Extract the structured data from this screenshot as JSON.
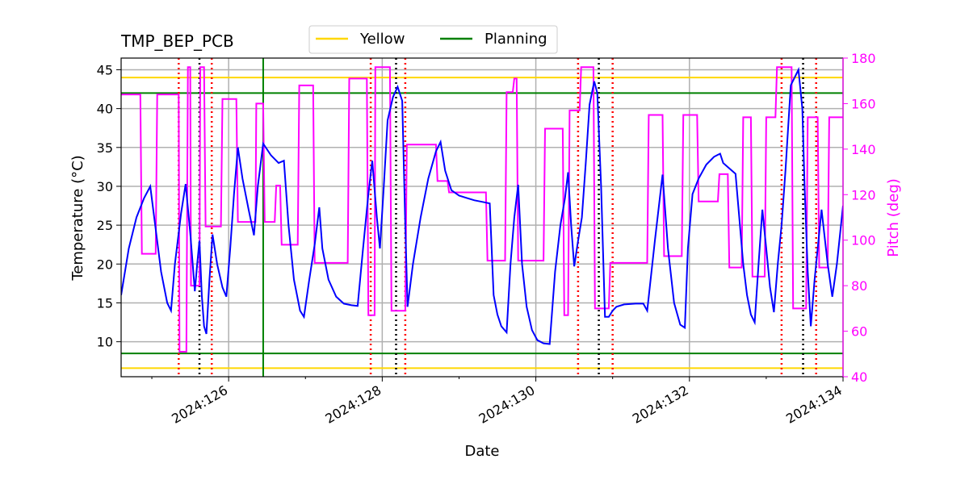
{
  "chart_data": {
    "type": "line",
    "title": "TMP_BEP_PCB",
    "xlabel": "Date",
    "ylabel": "Temperature ($^\\circ$C)",
    "ylabel_display": "Temperature (°C)",
    "y2label": "Pitch (deg)",
    "xlim": [
      124.6,
      134.0
    ],
    "ylim": [
      5.5,
      46.5
    ],
    "y2lim": [
      40,
      180
    ],
    "x_ticks": [
      {
        "value": 126,
        "label": "2024:126"
      },
      {
        "value": 128,
        "label": "2024:128"
      },
      {
        "value": 130,
        "label": "2024:130"
      },
      {
        "value": 132,
        "label": "2024:132"
      },
      {
        "value": 134,
        "label": "2024:134"
      }
    ],
    "x_minor_ticks": [
      125,
      127,
      129,
      131,
      133
    ],
    "y_ticks": [
      10,
      15,
      20,
      25,
      30,
      35,
      40,
      45
    ],
    "y2_ticks": [
      40,
      60,
      80,
      100,
      120,
      140,
      160,
      180
    ],
    "grid": true,
    "colors": {
      "temperature": "#0000ff",
      "pitch": "#ff00ff",
      "yellow": "#ffd700",
      "planning": "#008000",
      "red_marker": "#ff0000",
      "black_marker": "#000000"
    },
    "legend": {
      "placement": "top-center",
      "entries": [
        {
          "label": "Yellow",
          "color": "#ffd700"
        },
        {
          "label": "Planning",
          "color": "#008000"
        }
      ]
    },
    "limits": {
      "yellow": [
        6.6,
        44.0
      ],
      "planning": [
        8.5,
        42.0
      ],
      "planning_vertical_x": 126.45
    },
    "red_markers_x": [
      125.35,
      125.78,
      127.85,
      128.3,
      130.55,
      131.0,
      133.2,
      133.65
    ],
    "black_markers_x": [
      125.62,
      128.18,
      130.82,
      133.48
    ],
    "series": [
      {
        "name": "Temperature",
        "axis": "left",
        "points": [
          [
            124.6,
            16.0
          ],
          [
            124.7,
            22.0
          ],
          [
            124.8,
            26.0
          ],
          [
            124.9,
            28.5
          ],
          [
            124.98,
            30.0
          ],
          [
            125.05,
            24.5
          ],
          [
            125.12,
            19.0
          ],
          [
            125.2,
            15.0
          ],
          [
            125.25,
            14.0
          ],
          [
            125.3,
            20.0
          ],
          [
            125.38,
            26.5
          ],
          [
            125.44,
            30.3
          ],
          [
            125.5,
            24.0
          ],
          [
            125.56,
            16.5
          ],
          [
            125.59,
            20.0
          ],
          [
            125.62,
            23.0
          ],
          [
            125.65,
            16.0
          ],
          [
            125.68,
            12.0
          ],
          [
            125.71,
            11.0
          ],
          [
            125.75,
            18.0
          ],
          [
            125.79,
            23.8
          ],
          [
            125.85,
            20.0
          ],
          [
            125.92,
            17.0
          ],
          [
            125.97,
            15.8
          ],
          [
            126.02,
            22.0
          ],
          [
            126.07,
            29.0
          ],
          [
            126.12,
            35.0
          ],
          [
            126.18,
            31.0
          ],
          [
            126.26,
            27.0
          ],
          [
            126.33,
            23.7
          ],
          [
            126.38,
            30.0
          ],
          [
            126.45,
            35.5
          ],
          [
            126.55,
            34.0
          ],
          [
            126.65,
            33.0
          ],
          [
            126.72,
            33.3
          ],
          [
            126.78,
            25.0
          ],
          [
            126.85,
            18.0
          ],
          [
            126.93,
            14.0
          ],
          [
            126.98,
            13.2
          ],
          [
            127.05,
            18.0
          ],
          [
            127.12,
            22.5
          ],
          [
            127.18,
            27.3
          ],
          [
            127.22,
            22.0
          ],
          [
            127.3,
            18.0
          ],
          [
            127.4,
            15.8
          ],
          [
            127.5,
            14.9
          ],
          [
            127.6,
            14.7
          ],
          [
            127.68,
            14.6
          ],
          [
            127.75,
            22.0
          ],
          [
            127.82,
            29.0
          ],
          [
            127.87,
            33.3
          ],
          [
            127.93,
            26.0
          ],
          [
            127.97,
            22.0
          ],
          [
            128.02,
            30.0
          ],
          [
            128.07,
            38.5
          ],
          [
            128.14,
            41.5
          ],
          [
            128.2,
            42.8
          ],
          [
            128.26,
            41.0
          ],
          [
            128.3,
            25.0
          ],
          [
            128.33,
            14.5
          ],
          [
            128.4,
            20.0
          ],
          [
            128.5,
            26.0
          ],
          [
            128.6,
            31.0
          ],
          [
            128.7,
            34.5
          ],
          [
            128.76,
            35.7
          ],
          [
            128.82,
            32.0
          ],
          [
            128.9,
            29.5
          ],
          [
            129.0,
            28.8
          ],
          [
            129.1,
            28.5
          ],
          [
            129.2,
            28.2
          ],
          [
            129.3,
            28.0
          ],
          [
            129.4,
            27.8
          ],
          [
            129.45,
            16.0
          ],
          [
            129.5,
            13.5
          ],
          [
            129.55,
            12.0
          ],
          [
            129.62,
            11.2
          ],
          [
            129.67,
            20.0
          ],
          [
            129.72,
            26.0
          ],
          [
            129.77,
            30.2
          ],
          [
            129.82,
            20.0
          ],
          [
            129.88,
            14.5
          ],
          [
            129.95,
            11.5
          ],
          [
            130.02,
            10.2
          ],
          [
            130.1,
            9.8
          ],
          [
            130.18,
            9.7
          ],
          [
            130.25,
            19.0
          ],
          [
            130.32,
            25.0
          ],
          [
            130.38,
            28.5
          ],
          [
            130.42,
            31.8
          ],
          [
            130.46,
            25.0
          ],
          [
            130.5,
            19.7
          ],
          [
            130.55,
            23.0
          ],
          [
            130.6,
            26.0
          ],
          [
            130.65,
            33.0
          ],
          [
            130.7,
            40.5
          ],
          [
            130.76,
            43.5
          ],
          [
            130.8,
            42.0
          ],
          [
            130.85,
            30.0
          ],
          [
            130.9,
            13.2
          ],
          [
            130.95,
            13.2
          ],
          [
            131.0,
            14.0
          ],
          [
            131.05,
            14.5
          ],
          [
            131.15,
            14.8
          ],
          [
            131.3,
            14.9
          ],
          [
            131.4,
            14.9
          ],
          [
            131.45,
            14.0
          ],
          [
            131.55,
            23.0
          ],
          [
            131.65,
            31.5
          ],
          [
            131.72,
            22.0
          ],
          [
            131.8,
            15.0
          ],
          [
            131.88,
            12.2
          ],
          [
            131.94,
            11.8
          ],
          [
            131.98,
            22.0
          ],
          [
            132.04,
            29.0
          ],
          [
            132.12,
            31.0
          ],
          [
            132.22,
            32.8
          ],
          [
            132.32,
            33.8
          ],
          [
            132.4,
            34.2
          ],
          [
            132.44,
            33.0
          ],
          [
            132.52,
            32.3
          ],
          [
            132.6,
            31.6
          ],
          [
            132.7,
            20.0
          ],
          [
            132.75,
            16.0
          ],
          [
            132.8,
            13.5
          ],
          [
            132.85,
            12.5
          ],
          [
            132.9,
            20.0
          ],
          [
            132.95,
            27.0
          ],
          [
            133.0,
            22.0
          ],
          [
            133.05,
            17.0
          ],
          [
            133.1,
            13.8
          ],
          [
            133.15,
            20.0
          ],
          [
            133.2,
            25.0
          ],
          [
            133.25,
            32.0
          ],
          [
            133.32,
            43.0
          ],
          [
            133.42,
            45.0
          ],
          [
            133.47,
            40.0
          ],
          [
            133.5,
            30.0
          ],
          [
            133.54,
            19.0
          ],
          [
            133.58,
            12.0
          ],
          [
            133.63,
            18.0
          ],
          [
            133.72,
            27.0
          ],
          [
            133.8,
            20.0
          ],
          [
            133.86,
            15.8
          ],
          [
            133.92,
            20.0
          ],
          [
            134.0,
            27.5
          ]
        ]
      },
      {
        "name": "Pitch",
        "axis": "right",
        "points": [
          [
            124.6,
            164
          ],
          [
            124.85,
            164
          ],
          [
            124.87,
            94
          ],
          [
            125.05,
            94
          ],
          [
            125.07,
            164
          ],
          [
            125.35,
            164
          ],
          [
            125.36,
            51
          ],
          [
            125.45,
            51
          ],
          [
            125.47,
            176
          ],
          [
            125.5,
            176
          ],
          [
            125.51,
            80
          ],
          [
            125.62,
            80
          ],
          [
            125.63,
            176
          ],
          [
            125.68,
            176
          ],
          [
            125.7,
            106
          ],
          [
            125.9,
            106
          ],
          [
            125.92,
            162
          ],
          [
            126.1,
            162
          ],
          [
            126.12,
            108
          ],
          [
            126.35,
            108
          ],
          [
            126.36,
            160
          ],
          [
            126.45,
            160
          ],
          [
            126.47,
            108
          ],
          [
            126.6,
            108
          ],
          [
            126.62,
            124
          ],
          [
            126.67,
            124
          ],
          [
            126.69,
            98
          ],
          [
            126.9,
            98
          ],
          [
            126.92,
            168
          ],
          [
            127.1,
            168
          ],
          [
            127.12,
            90
          ],
          [
            127.55,
            90
          ],
          [
            127.57,
            171
          ],
          [
            127.8,
            171
          ],
          [
            127.82,
            67
          ],
          [
            127.9,
            67
          ],
          [
            127.91,
            176
          ],
          [
            128.1,
            176
          ],
          [
            128.12,
            69
          ],
          [
            128.3,
            69
          ],
          [
            128.32,
            142
          ],
          [
            128.7,
            142
          ],
          [
            128.72,
            126
          ],
          [
            128.85,
            126
          ],
          [
            128.87,
            121
          ],
          [
            129.35,
            121
          ],
          [
            129.37,
            91
          ],
          [
            129.6,
            91
          ],
          [
            129.62,
            165
          ],
          [
            129.7,
            165
          ],
          [
            129.72,
            171
          ],
          [
            129.75,
            171
          ],
          [
            129.77,
            91
          ],
          [
            130.1,
            91
          ],
          [
            130.12,
            149
          ],
          [
            130.35,
            149
          ],
          [
            130.37,
            67
          ],
          [
            130.42,
            67
          ],
          [
            130.44,
            157
          ],
          [
            130.57,
            157
          ],
          [
            130.59,
            176
          ],
          [
            130.75,
            176
          ],
          [
            130.77,
            70
          ],
          [
            130.95,
            70
          ],
          [
            130.97,
            90
          ],
          [
            131.45,
            90
          ],
          [
            131.47,
            155
          ],
          [
            131.65,
            155
          ],
          [
            131.67,
            93
          ],
          [
            131.9,
            93
          ],
          [
            131.92,
            155
          ],
          [
            132.1,
            155
          ],
          [
            132.12,
            117
          ],
          [
            132.37,
            117
          ],
          [
            132.39,
            129
          ],
          [
            132.5,
            129
          ],
          [
            132.52,
            88
          ],
          [
            132.68,
            88
          ],
          [
            132.7,
            154
          ],
          [
            132.8,
            154
          ],
          [
            132.82,
            84
          ],
          [
            132.98,
            84
          ],
          [
            133.0,
            154
          ],
          [
            133.12,
            154
          ],
          [
            133.14,
            176
          ],
          [
            133.33,
            176
          ],
          [
            133.35,
            70
          ],
          [
            133.52,
            70
          ],
          [
            133.54,
            154
          ],
          [
            133.67,
            154
          ],
          [
            133.69,
            88
          ],
          [
            133.8,
            88
          ],
          [
            133.82,
            154
          ],
          [
            134.0,
            154
          ]
        ]
      }
    ]
  }
}
